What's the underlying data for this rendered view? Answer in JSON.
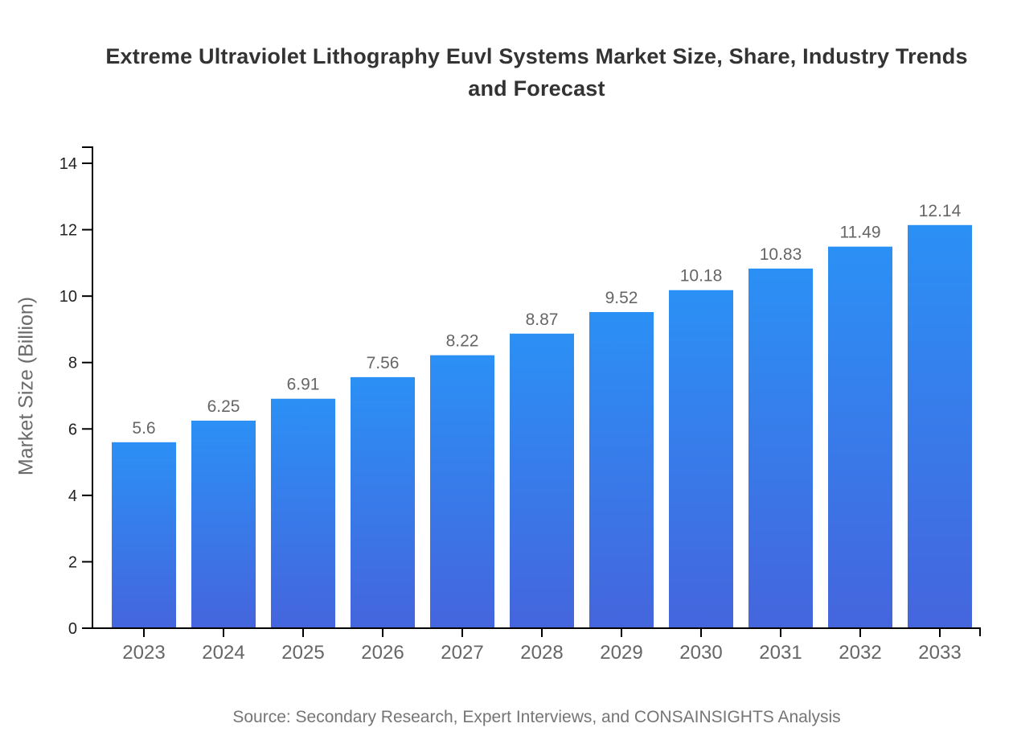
{
  "chart": {
    "title": "Extreme Ultraviolet Lithography Euvl Systems Market Size, Share, Industry Trends and Forecast",
    "source": "Source: Secondary Research, Expert Interviews, and CONSAINSIGHTS Analysis"
  },
  "chart_data": {
    "type": "bar",
    "title": "Extreme Ultraviolet Lithography Euvl Systems Market Size, Share, Industry Trends and Forecast",
    "categories": [
      "2023",
      "2024",
      "2025",
      "2026",
      "2027",
      "2028",
      "2029",
      "2030",
      "2031",
      "2032",
      "2033"
    ],
    "values": [
      5.6,
      6.25,
      6.91,
      7.56,
      8.22,
      8.87,
      9.52,
      10.18,
      10.83,
      11.49,
      12.14
    ],
    "value_labels": [
      "5.6",
      "6.25",
      "6.91",
      "7.56",
      "8.22",
      "8.87",
      "9.52",
      "10.18",
      "10.83",
      "11.49",
      "12.14"
    ],
    "xlabel": "",
    "ylabel": "Market Size (Billion)",
    "ylim": [
      0,
      14.5
    ],
    "yticks": [
      0,
      2,
      4,
      6,
      8,
      10,
      12,
      14
    ],
    "grid": false,
    "legend": false,
    "source_note": "Source: Secondary Research, Expert Interviews, and CONSAINSIGHTS Analysis",
    "colors": {
      "bar_gradient_top": "#2B90F5",
      "bar_gradient_bottom": "#4565DD",
      "axis_line": "#000000",
      "title_text": "#333333",
      "y_tick_text": "#222222",
      "x_tick_text": "#666666",
      "value_label_text": "#666666",
      "axis_title_text": "#6b6b6b",
      "source_text": "#757575",
      "background": "#ffffff"
    }
  }
}
